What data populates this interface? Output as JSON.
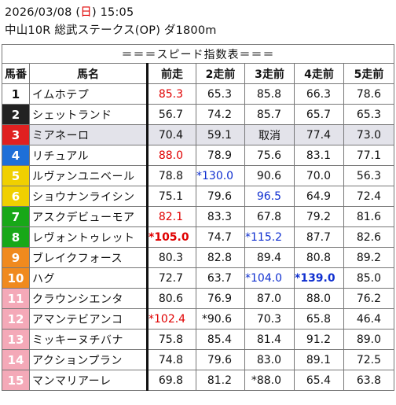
{
  "header": {
    "date_prefix": "2026/03/08 (",
    "weekday": "日",
    "date_suffix": ") 15:05",
    "race_line": "中山10R 総武ステークス(OP) ダ1800m"
  },
  "table": {
    "title": "＝＝＝スピード指数表＝＝＝",
    "columns": [
      "馬番",
      "馬名",
      "前走",
      "2走前",
      "3走前",
      "4走前",
      "5走前"
    ],
    "rows": [
      {
        "num": "1",
        "name": "イムホテプ",
        "vals": [
          "85.3",
          "65.3",
          "85.8",
          "66.3",
          "78.6"
        ],
        "styles": [
          "red",
          "",
          "",
          "",
          ""
        ]
      },
      {
        "num": "2",
        "name": "シェットランド",
        "vals": [
          "56.7",
          "74.2",
          "85.7",
          "65.7",
          "65.3"
        ],
        "styles": [
          "",
          "",
          "",
          "",
          ""
        ]
      },
      {
        "num": "3",
        "name": "ミアネーロ",
        "vals": [
          "70.4",
          "59.1",
          "取消",
          "77.4",
          "73.0"
        ],
        "styles": [
          "",
          "",
          "",
          "",
          ""
        ],
        "greyed": true
      },
      {
        "num": "4",
        "name": "リチュアル",
        "vals": [
          "88.0",
          "78.9",
          "75.6",
          "83.1",
          "77.1"
        ],
        "styles": [
          "red",
          "",
          "",
          "",
          ""
        ]
      },
      {
        "num": "5",
        "name": "ルヴァンユニベール",
        "vals": [
          "78.8",
          "*130.0",
          "90.6",
          "70.0",
          "56.3"
        ],
        "styles": [
          "",
          "blue",
          "",
          "",
          ""
        ]
      },
      {
        "num": "6",
        "name": "ショウナンライシン",
        "vals": [
          "75.1",
          "79.6",
          "96.5",
          "64.9",
          "72.4"
        ],
        "styles": [
          "",
          "",
          "blue",
          "",
          ""
        ]
      },
      {
        "num": "7",
        "name": "アスクデビューモア",
        "vals": [
          "82.1",
          "83.3",
          "67.8",
          "79.2",
          "81.6"
        ],
        "styles": [
          "red",
          "",
          "",
          "",
          ""
        ]
      },
      {
        "num": "8",
        "name": "レヴォントゥレット",
        "vals": [
          "*105.0",
          "74.7",
          "*115.2",
          "87.7",
          "82.6"
        ],
        "styles": [
          "red bold",
          "",
          "blue",
          "",
          ""
        ]
      },
      {
        "num": "9",
        "name": "ブレイクフォース",
        "vals": [
          "80.3",
          "82.8",
          "89.4",
          "80.8",
          "89.2"
        ],
        "styles": [
          "",
          "",
          "",
          "",
          ""
        ]
      },
      {
        "num": "10",
        "name": "ハグ",
        "vals": [
          "72.7",
          "63.7",
          "*104.0",
          "*139.0",
          "85.0"
        ],
        "styles": [
          "",
          "",
          "blue",
          "blue bold",
          ""
        ]
      },
      {
        "num": "11",
        "name": "クラウンシエンタ",
        "vals": [
          "80.6",
          "76.9",
          "87.0",
          "88.0",
          "76.2"
        ],
        "styles": [
          "",
          "",
          "",
          "",
          ""
        ]
      },
      {
        "num": "12",
        "name": "アマンテビアンコ",
        "vals": [
          "*102.4",
          "*90.6",
          "70.3",
          "65.8",
          "46.4"
        ],
        "styles": [
          "red",
          "",
          "",
          "",
          ""
        ]
      },
      {
        "num": "13",
        "name": "ミッキーヌチバナ",
        "vals": [
          "75.8",
          "85.4",
          "81.4",
          "91.2",
          "89.0"
        ],
        "styles": [
          "",
          "",
          "",
          "",
          ""
        ]
      },
      {
        "num": "14",
        "name": "アクションプラン",
        "vals": [
          "74.8",
          "79.6",
          "83.0",
          "89.1",
          "72.5"
        ],
        "styles": [
          "",
          "",
          "",
          "",
          ""
        ]
      },
      {
        "num": "15",
        "name": "マンマリアーレ",
        "vals": [
          "69.8",
          "81.2",
          "*88.0",
          "65.4",
          "63.8"
        ],
        "styles": [
          "",
          "",
          "",
          "",
          ""
        ]
      }
    ]
  },
  "colors": {
    "accent_red": "#e00000",
    "accent_blue": "#1030d0",
    "greyed_row": "#e3e3ea",
    "frame_colors": [
      "#ffffff",
      "#222222",
      "#e02020",
      "#1e6fd8",
      "#f0d000",
      "#18a818",
      "#f08a1e",
      "#f4a9b8"
    ]
  }
}
